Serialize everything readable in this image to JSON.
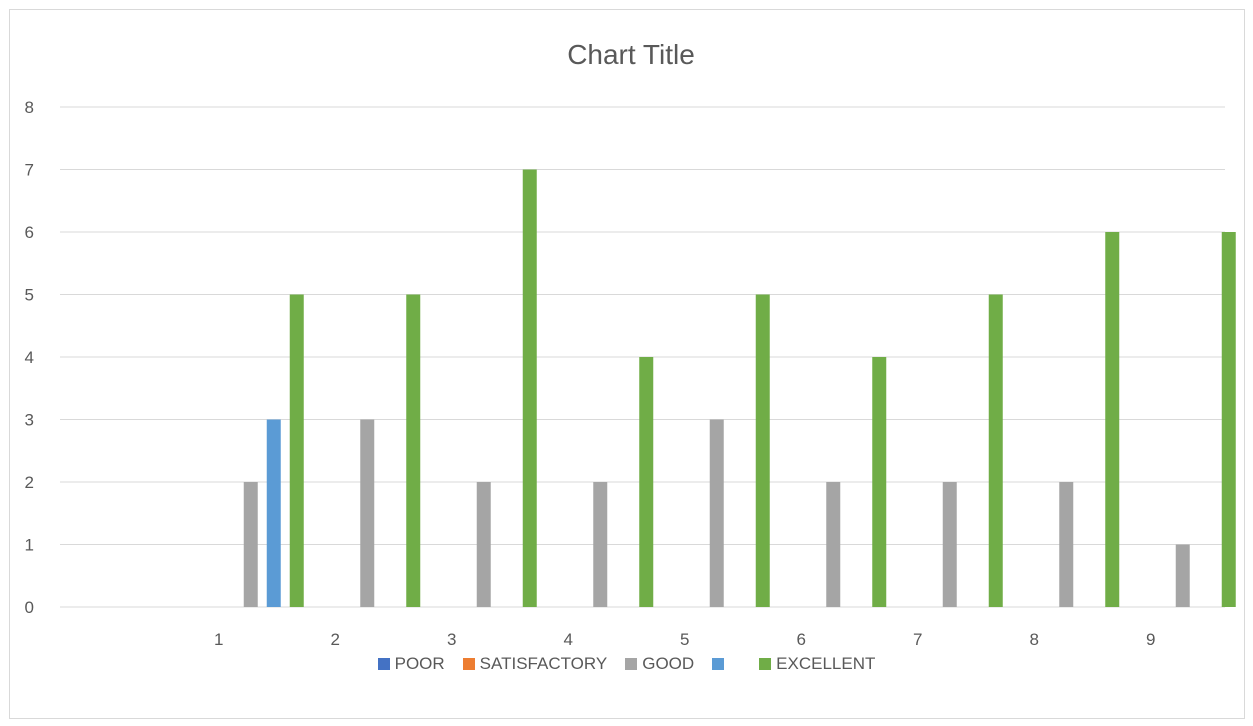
{
  "chart_data": {
    "type": "bar",
    "title": "Chart Title",
    "categories": [
      "1",
      "2",
      "3",
      "4",
      "5",
      "6",
      "7",
      "8",
      "9"
    ],
    "ylim": [
      0,
      8
    ],
    "yticks": [
      0,
      1,
      2,
      3,
      4,
      5,
      6,
      7,
      8
    ],
    "grid": true,
    "legend_position": "bottom",
    "series": [
      {
        "name": "POOR",
        "color": "#4472c4",
        "values": [
          0,
          0,
          0,
          0,
          0,
          0,
          0,
          0,
          0
        ]
      },
      {
        "name": "SATISFACTORY",
        "color": "#ed7d31",
        "values": [
          0,
          0,
          0,
          0,
          0,
          0,
          0,
          0,
          0
        ]
      },
      {
        "name": "GOOD",
        "color": "#a5a5a5",
        "values": [
          2,
          3,
          2,
          2,
          3,
          2,
          2,
          2,
          1
        ]
      },
      {
        "name": "",
        "color": "#5b9bd5",
        "values": [
          3,
          0,
          0,
          0,
          0,
          0,
          0,
          0,
          0
        ]
      },
      {
        "name": "EXCELLENT",
        "color": "#70ad47",
        "values": [
          5,
          5,
          7,
          4,
          5,
          4,
          5,
          6,
          6
        ]
      }
    ]
  }
}
